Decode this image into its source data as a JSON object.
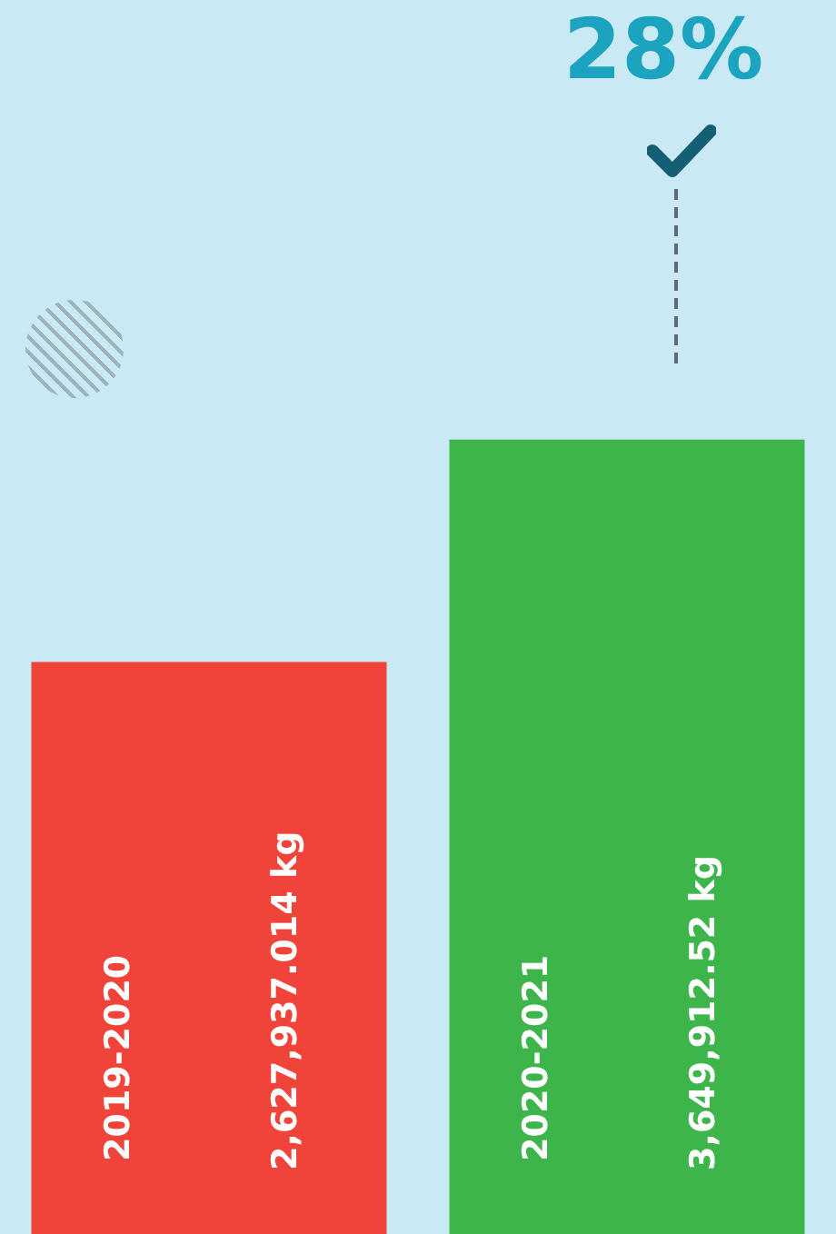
{
  "chart_data": {
    "type": "bar",
    "categories": [
      "2019-2020",
      "2020-2021"
    ],
    "values": [
      2627937.014,
      3649912.52
    ],
    "colors": [
      "#f0443a",
      "#3db54b"
    ],
    "value_labels": [
      "2,627,937.014 kg",
      "3,649,912.52 kg"
    ],
    "annotations": [
      "28%"
    ],
    "tick_labels": false
  }
}
